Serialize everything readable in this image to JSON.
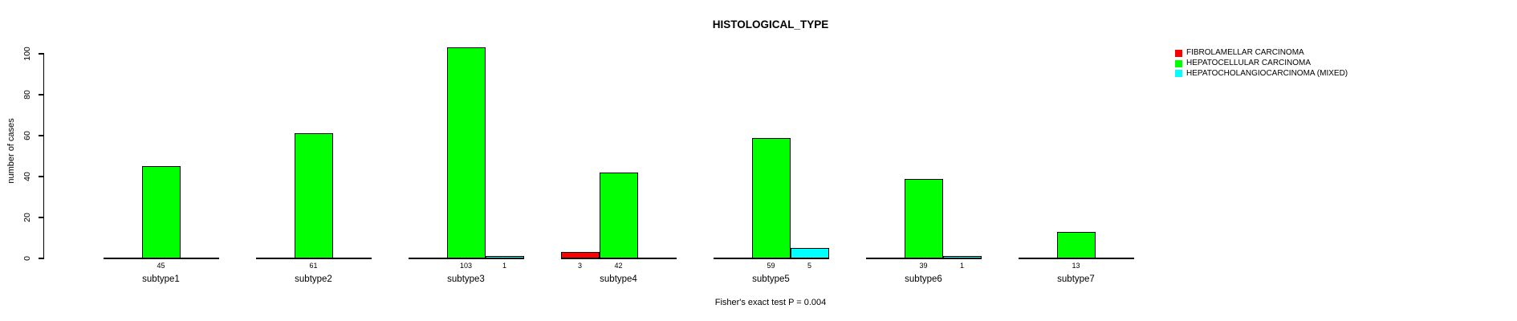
{
  "chart_data": {
    "type": "bar",
    "title": "HISTOLOGICAL_TYPE",
    "ylabel": "number of cases",
    "xlabel": "",
    "footer": "Fisher's exact test P = 0.004",
    "categories": [
      "subtype1",
      "subtype2",
      "subtype3",
      "subtype4",
      "subtype5",
      "subtype6",
      "subtype7"
    ],
    "series": [
      {
        "name": "FIBROLAMELLAR CARCINOMA",
        "color": "#ff0000",
        "values": [
          0,
          0,
          0,
          3,
          0,
          0,
          0
        ]
      },
      {
        "name": "HEPATOCELLULAR CARCINOMA",
        "color": "#00ff00",
        "values": [
          45,
          61,
          103,
          42,
          59,
          39,
          13
        ]
      },
      {
        "name": "HEPATOCHOLANGIOCARCINOMA (MIXED)",
        "color": "#00ffff",
        "values": [
          0,
          0,
          1,
          0,
          5,
          1,
          0
        ]
      }
    ],
    "yticks": [
      0,
      20,
      40,
      60,
      80,
      100
    ],
    "ylim": [
      0,
      103
    ],
    "grid": false,
    "legend_position": "top-right",
    "bar_value_labels_shown": true
  },
  "colors": {
    "background": "#ffffff",
    "axis": "#000000",
    "text": "#000000"
  }
}
